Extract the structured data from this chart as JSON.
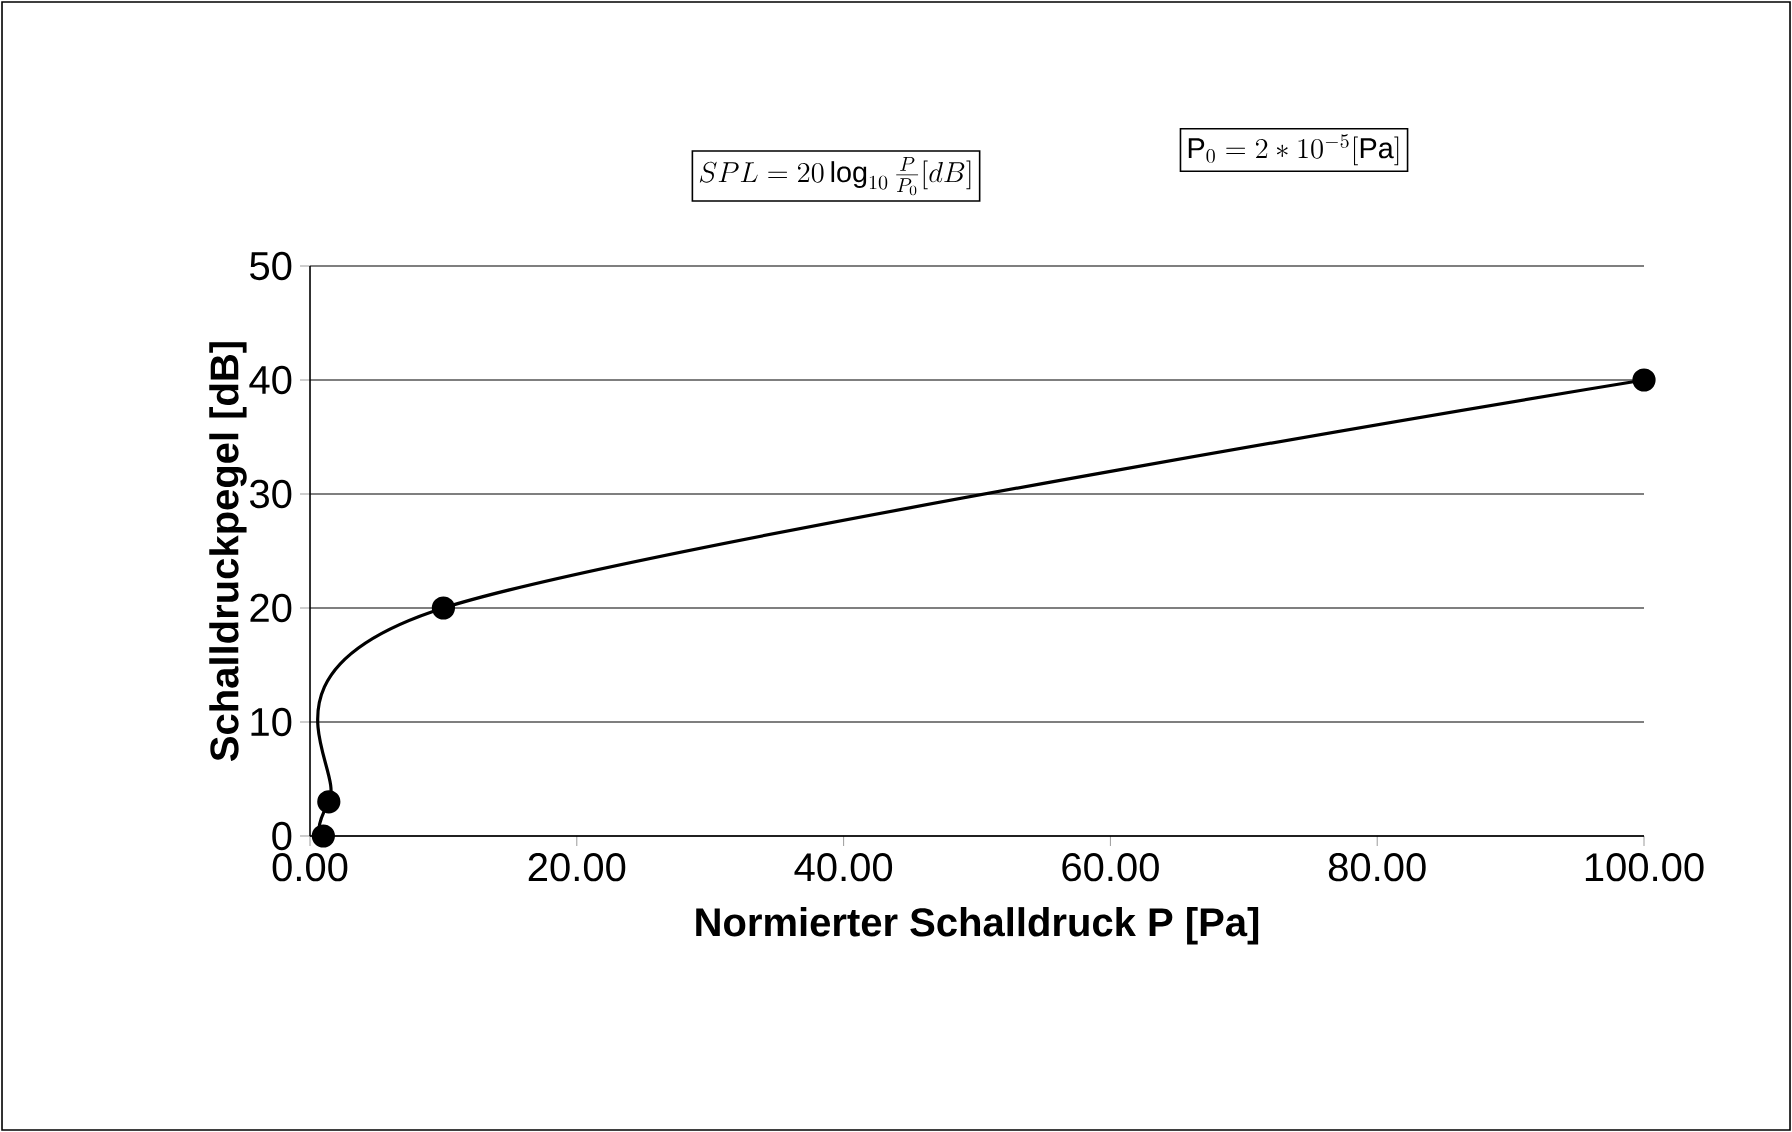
{
  "chart_data": {
    "type": "line",
    "xlabel": "Normierter Schalldruck P [Pa]",
    "ylabel": "Schalldruckpegel [dB]",
    "annotations": [
      "SPL = 20\\log_{10}\\frac{P}{P_0}[dB]",
      "\\mathrm{P}_0 = 2*10^{-5}[\\mathrm{Pa}]"
    ],
    "x": [
      1,
      1.41,
      10,
      100
    ],
    "series": [
      {
        "color": "#000000",
        "values": [
          0,
          3,
          20,
          40
        ]
      }
    ],
    "xlim": [
      0,
      100
    ],
    "ylim": [
      0,
      50
    ],
    "xticks": [
      {
        "value": 0,
        "label": "0.00"
      },
      {
        "value": 20,
        "label": "20.00"
      },
      {
        "value": 40,
        "label": "40.00"
      },
      {
        "value": 60,
        "label": "60.00"
      },
      {
        "value": 80,
        "label": "80.00"
      },
      {
        "value": 100,
        "label": "100.00"
      }
    ],
    "yticks": [
      0,
      10,
      20,
      30,
      40,
      50
    ],
    "grid": "y",
    "marker": "circle",
    "line_style": "solid"
  }
}
